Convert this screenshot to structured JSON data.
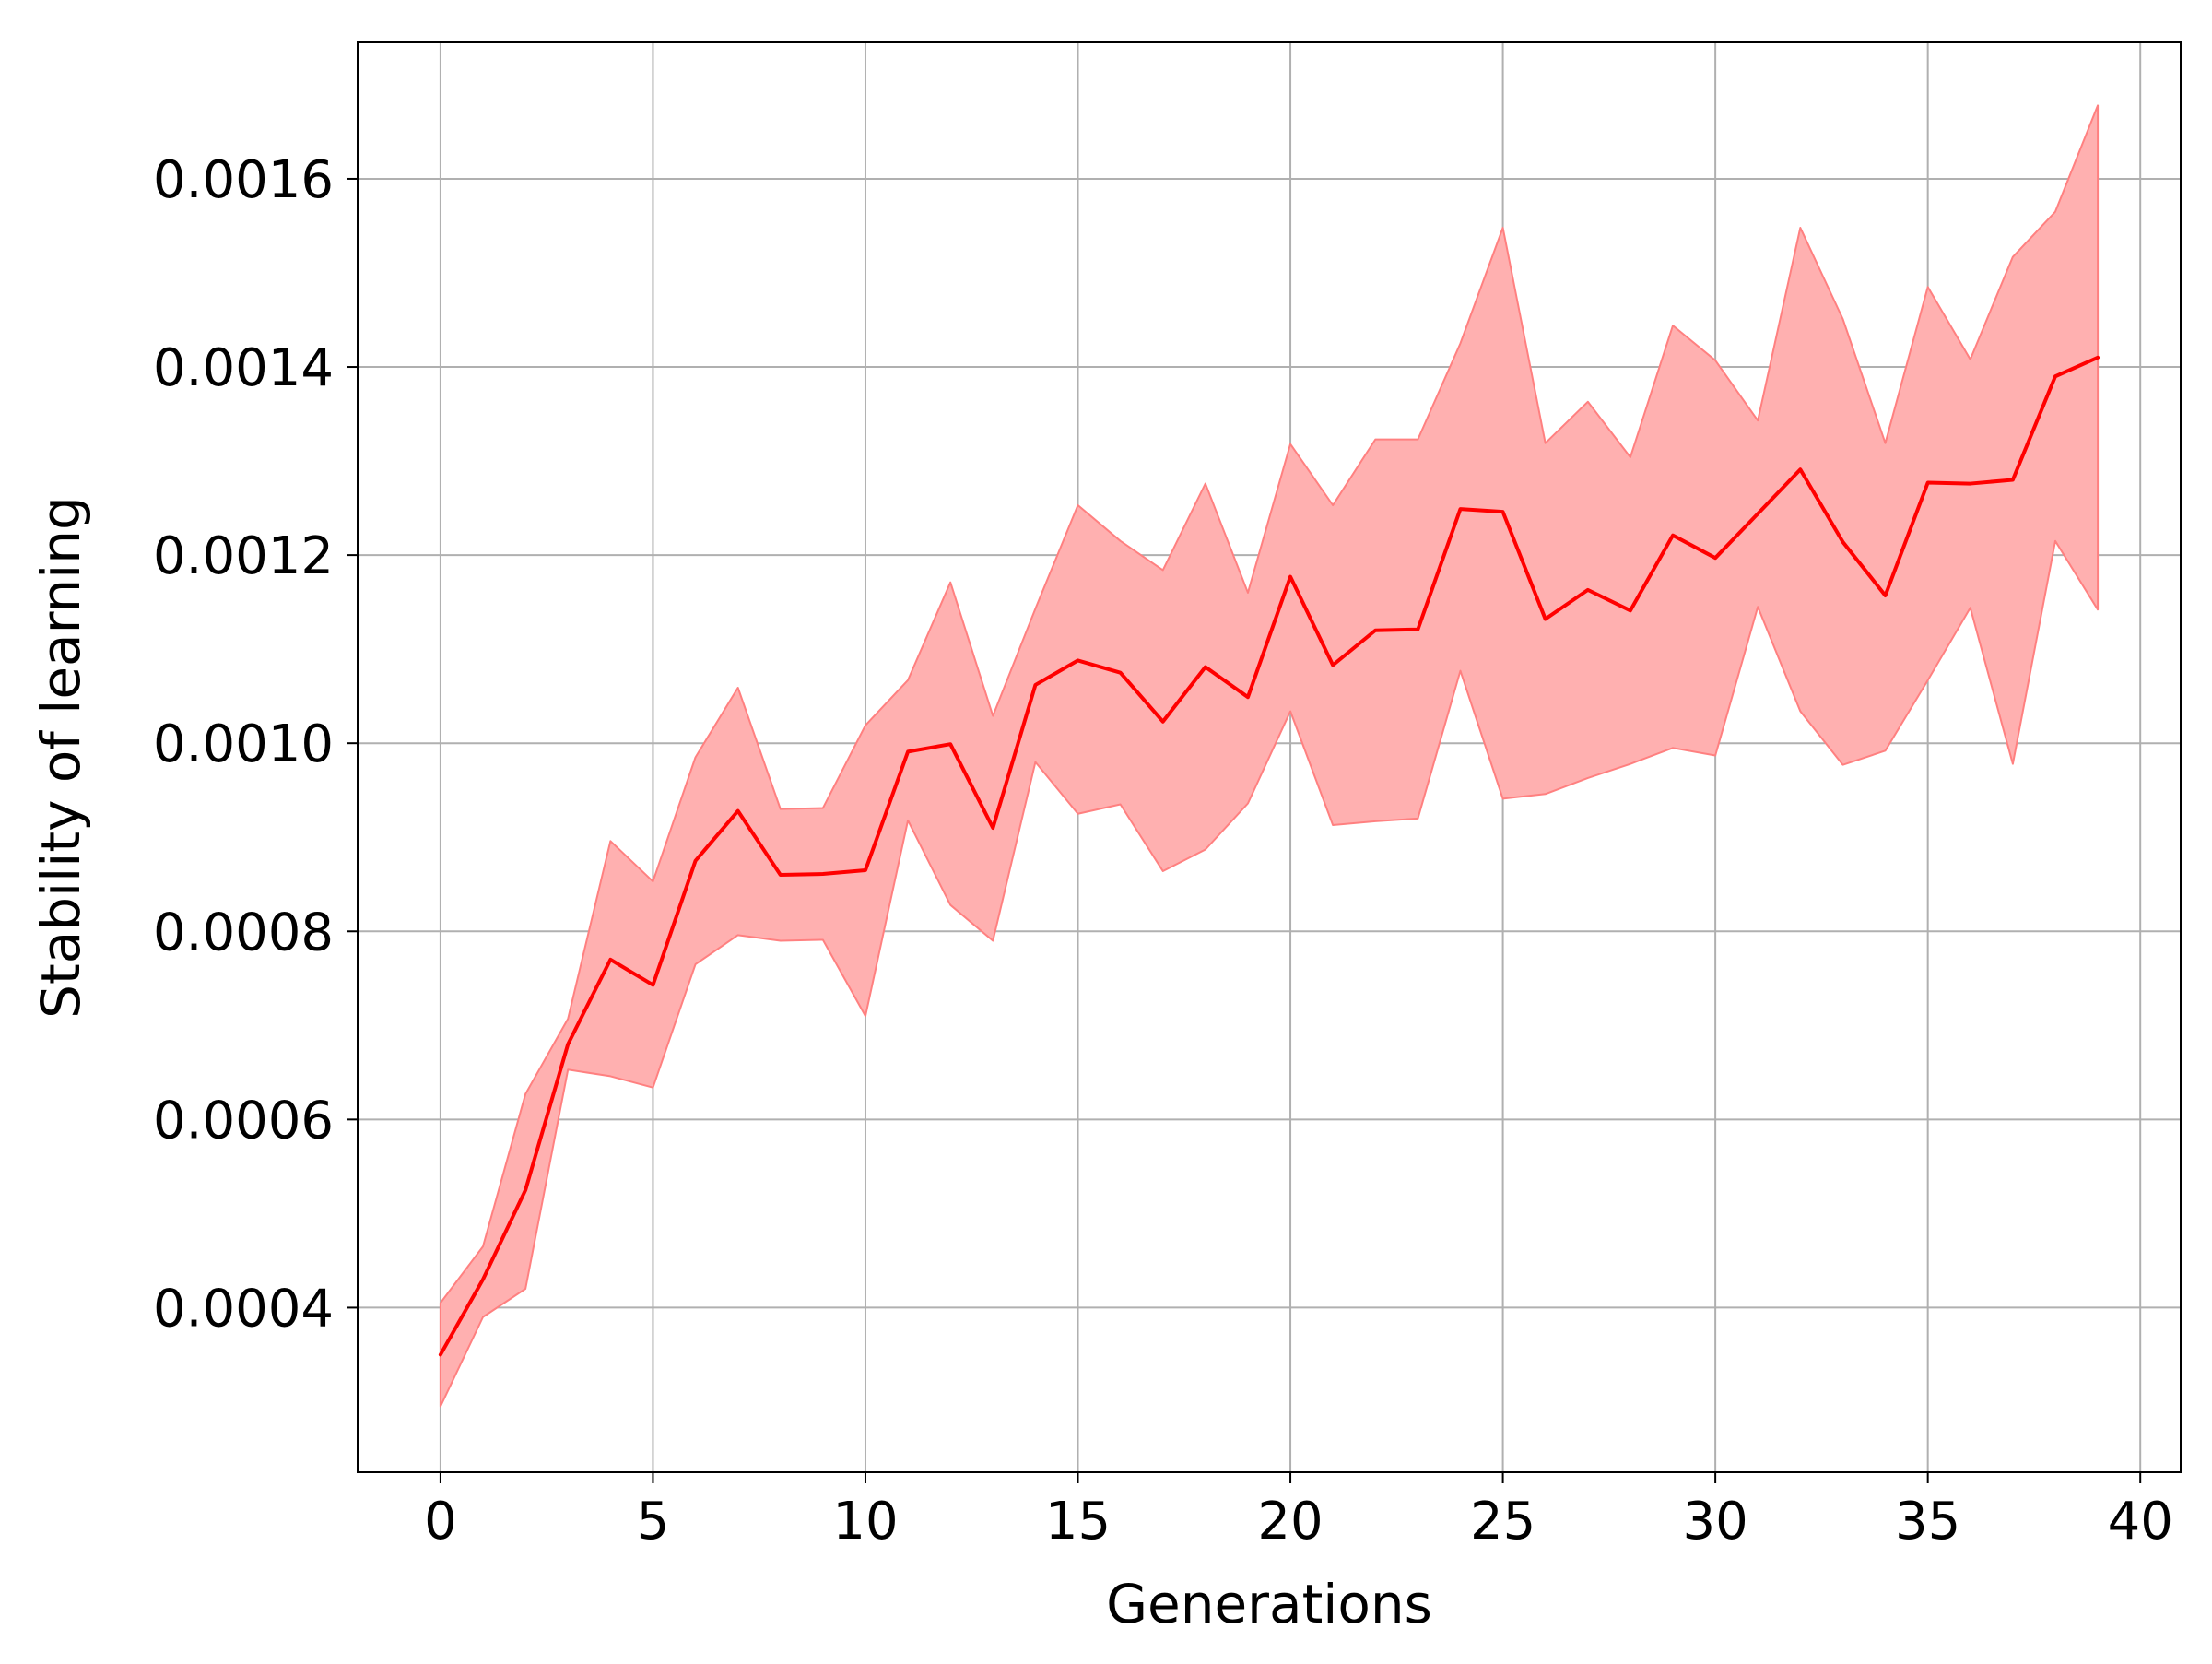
{
  "chart_data": {
    "type": "line",
    "title": "",
    "xlabel": "Generations",
    "ylabel": "Stability of learning",
    "xlim": [
      -1.95,
      40.95
    ],
    "ylim": [
      0.000225,
      0.001745
    ],
    "grid": true,
    "x_ticks": [
      0,
      5,
      10,
      15,
      20,
      25,
      30,
      35,
      40
    ],
    "x_tick_labels": [
      "0",
      "5",
      "10",
      "15",
      "20",
      "25",
      "30",
      "35",
      "40"
    ],
    "y_ticks": [
      0.0004,
      0.0006,
      0.0008,
      0.001,
      0.0012,
      0.0014,
      0.0016
    ],
    "y_tick_labels": [
      "0.0004",
      "0.0006",
      "0.0008",
      "0.0010",
      "0.0012",
      "0.0014",
      "0.0016"
    ],
    "x": [
      0,
      1,
      2,
      3,
      4,
      5,
      6,
      7,
      8,
      9,
      10,
      11,
      12,
      13,
      14,
      15,
      16,
      17,
      18,
      19,
      20,
      21,
      22,
      23,
      24,
      25,
      26,
      27,
      28,
      29,
      30,
      31,
      32,
      33,
      34,
      35,
      36,
      37,
      38,
      39
    ],
    "series": [
      {
        "values": [
          0.00035,
          0.00043,
          0.000525,
          0.00068,
          0.00077,
          0.000743,
          0.000875,
          0.000928,
          0.00086,
          0.000861,
          0.000865,
          0.000991,
          0.000999,
          0.00091,
          0.001062,
          0.001088,
          0.001075,
          0.001023,
          0.001081,
          0.001049,
          0.001177,
          0.001083,
          0.00112,
          0.001121,
          0.001249,
          0.001246,
          0.001132,
          0.001163,
          0.001141,
          0.001221,
          0.001197,
          0.001244,
          0.001291,
          0.001214,
          0.001157,
          0.001277,
          0.001276,
          0.00128,
          0.00139,
          0.00141
        ],
        "color": "#ff0000"
      }
    ],
    "band": {
      "lower": [
        0.000295,
        0.00039,
        0.00042,
        0.000653,
        0.000646,
        0.000634,
        0.000765,
        0.000796,
        0.00079,
        0.000791,
        0.00071,
        0.000918,
        0.000828,
        0.00079,
        0.00098,
        0.000925,
        0.000935,
        0.000864,
        0.000887,
        0.000936,
        0.001034,
        0.000913,
        0.000917,
        0.00092,
        0.001077,
        0.000941,
        0.000946,
        0.000963,
        0.000978,
        0.000995,
        0.000987,
        0.001145,
        0.001034,
        0.000977,
        0.000992,
        0.001067,
        0.001144,
        0.000978,
        0.001215,
        0.001142
      ],
      "upper": [
        0.000405,
        0.000465,
        0.000627,
        0.000707,
        0.000896,
        0.000853,
        0.000985,
        0.001059,
        0.00093,
        0.000931,
        0.001019,
        0.001067,
        0.001171,
        0.001029,
        0.001143,
        0.001253,
        0.001215,
        0.001184,
        0.001276,
        0.00116,
        0.001318,
        0.001253,
        0.001323,
        0.001323,
        0.001425,
        0.001548,
        0.001319,
        0.001363,
        0.001304,
        0.001444,
        0.001407,
        0.001343,
        0.001548,
        0.001451,
        0.001319,
        0.001485,
        0.001408,
        0.001517,
        0.001565,
        0.001678
      ],
      "color": "#ffb0b0"
    },
    "colors": {
      "line": "#ff0000",
      "band_fill": "#ffb0b0",
      "band_edge": "#ff8080",
      "grid": "#b0b0b0",
      "axes": "#000000"
    }
  }
}
